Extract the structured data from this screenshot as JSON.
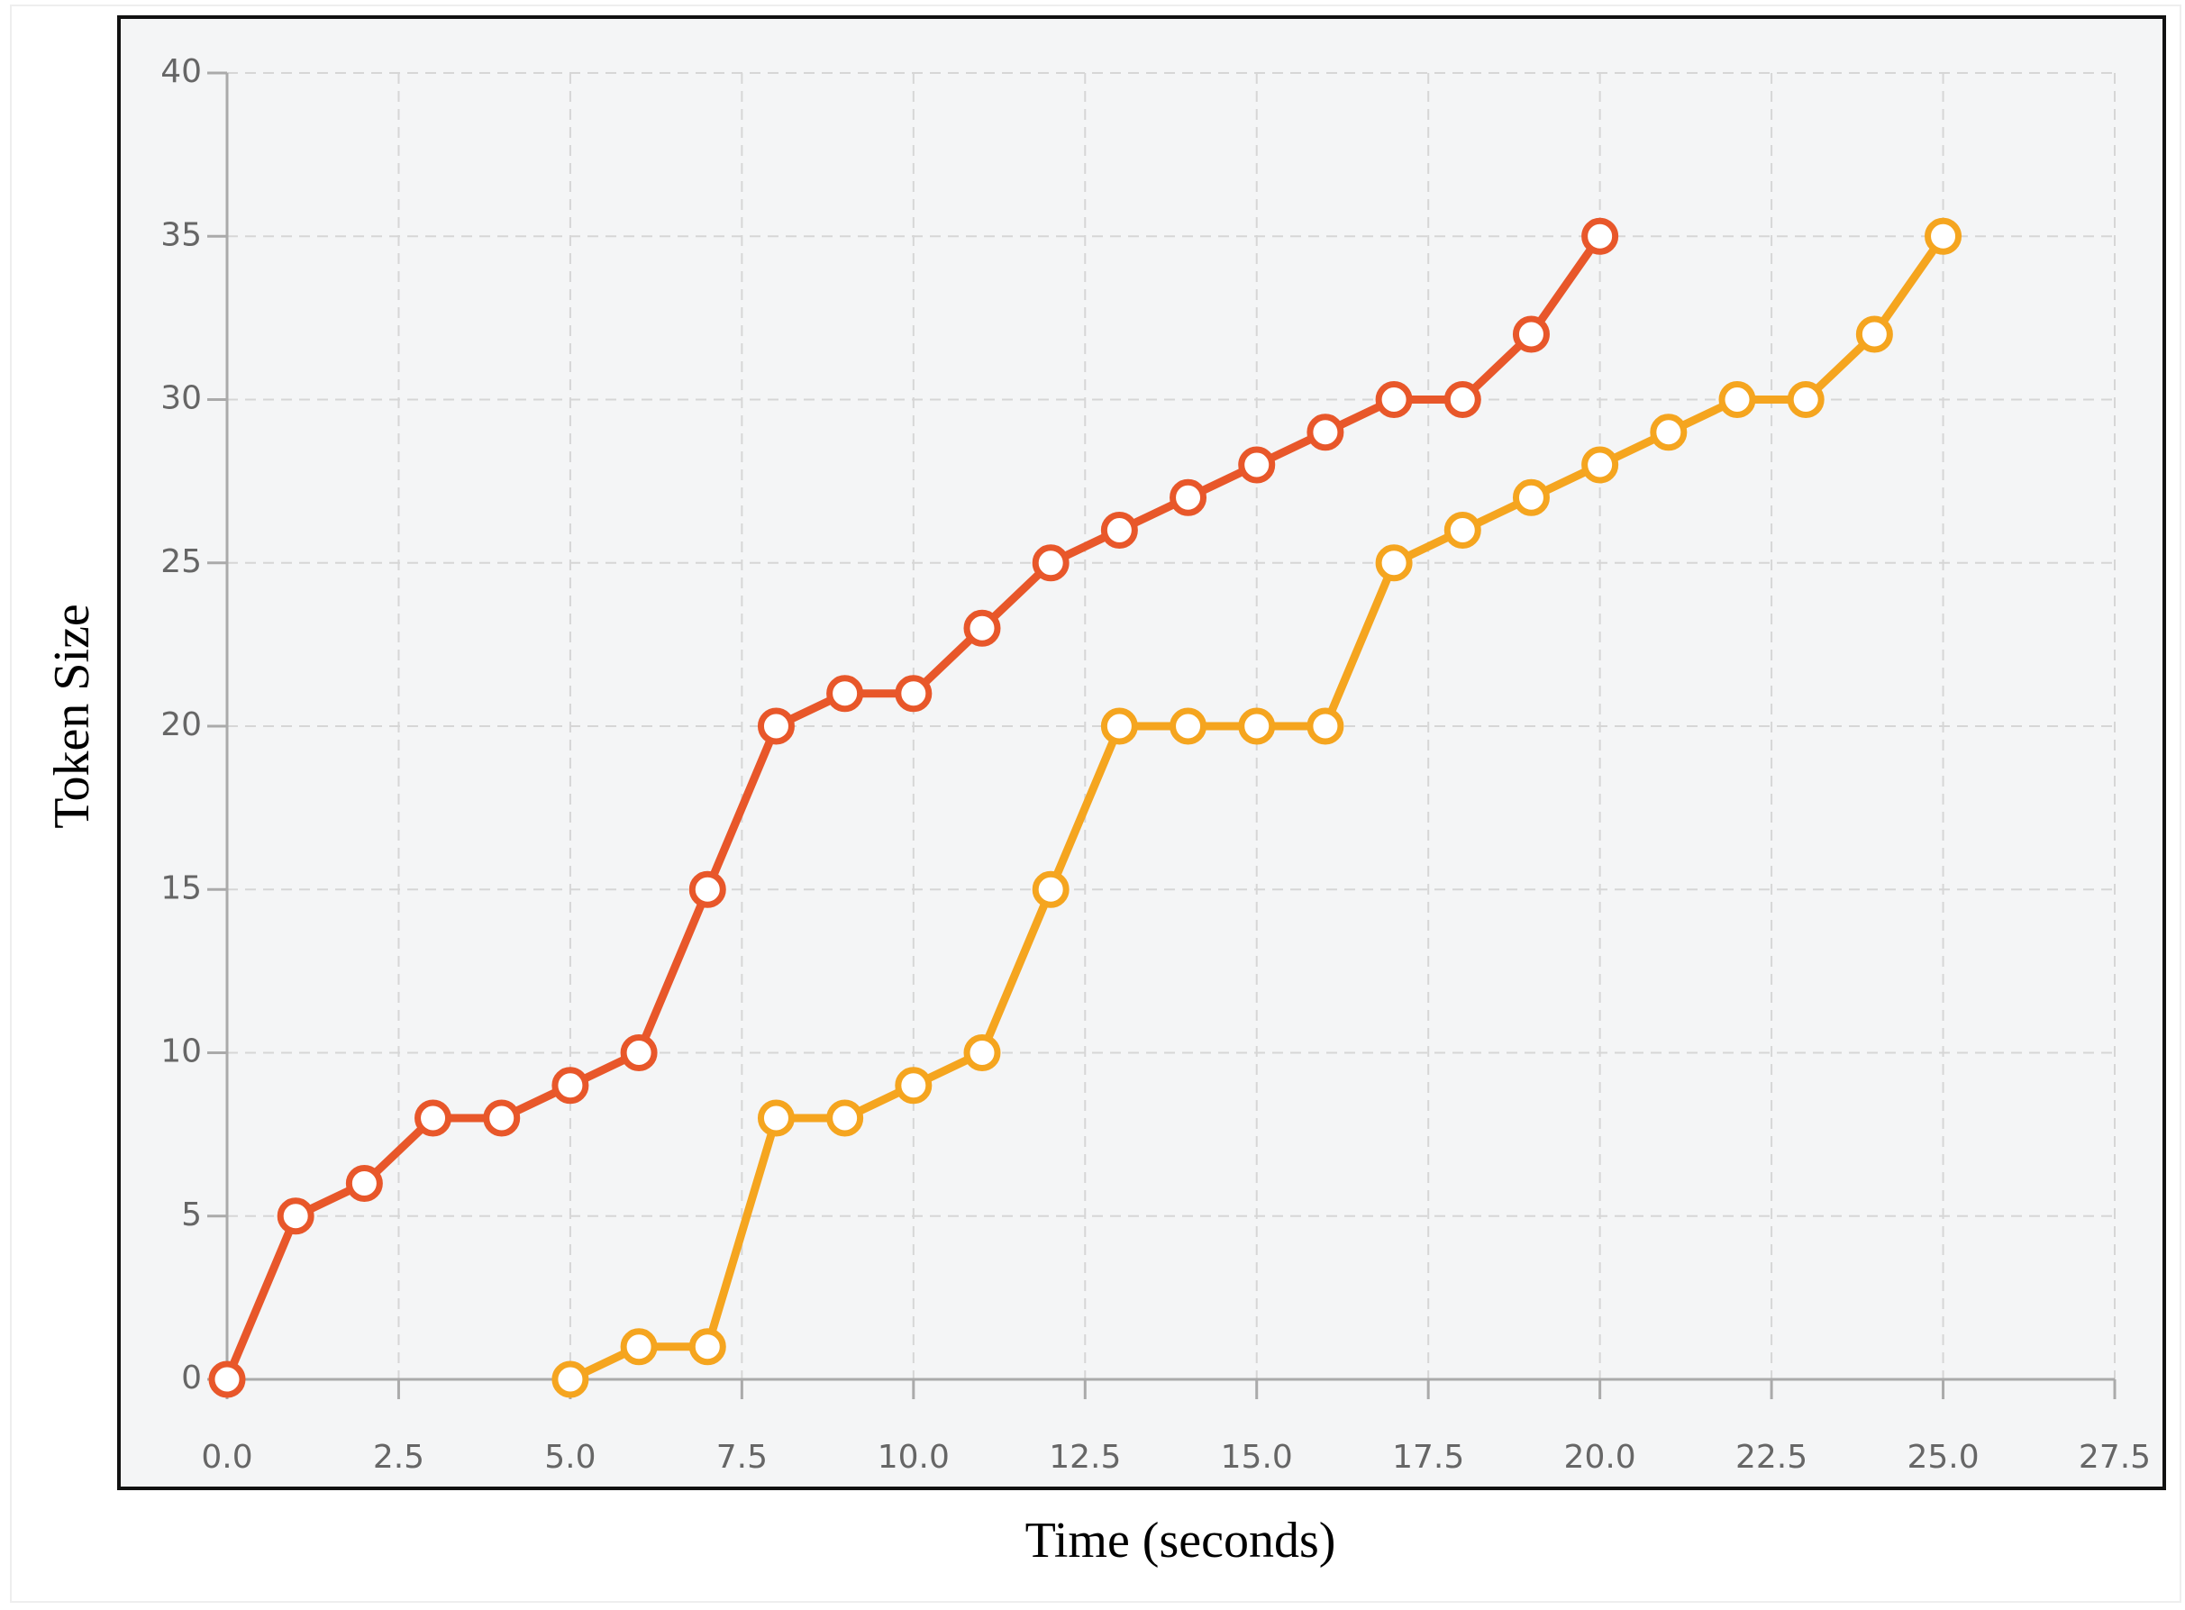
{
  "chart_data": {
    "type": "line",
    "x_label": "Time (seconds)",
    "y_label": "Token Size",
    "xlim": [
      0,
      27.5
    ],
    "ylim": [
      0,
      40
    ],
    "xticks": [
      {
        "value": 0,
        "label": "0.0"
      },
      {
        "value": 2.5,
        "label": "2.5"
      },
      {
        "value": 5,
        "label": "5.0"
      },
      {
        "value": 7.5,
        "label": "7.5"
      },
      {
        "value": 10,
        "label": "10.0"
      },
      {
        "value": 12.5,
        "label": "12.5"
      },
      {
        "value": 15,
        "label": "15.0"
      },
      {
        "value": 17.5,
        "label": "17.5"
      },
      {
        "value": 20,
        "label": "20.0"
      },
      {
        "value": 22.5,
        "label": "22.5"
      },
      {
        "value": 25,
        "label": "25.0"
      },
      {
        "value": 27.5,
        "label": "27.5"
      }
    ],
    "yticks": [
      0,
      5,
      10,
      15,
      20,
      25,
      30,
      35,
      40
    ],
    "grid": true,
    "series": [
      {
        "color": "#e8572a",
        "x": [
          0,
          1,
          2,
          3,
          4,
          5,
          6,
          7,
          8,
          9,
          10,
          11,
          12,
          13,
          14,
          15,
          16,
          17,
          18,
          19,
          20
        ],
        "values": [
          0,
          5,
          6,
          8,
          8,
          9,
          10,
          15,
          20,
          21,
          21,
          23,
          25,
          26,
          27,
          28,
          29,
          30,
          30,
          32,
          35
        ]
      },
      {
        "color": "#f5a51f",
        "x": [
          5,
          6,
          7,
          8,
          9,
          10,
          11,
          12,
          13,
          14,
          15,
          16,
          17,
          18,
          19,
          20,
          21,
          22,
          23,
          24,
          25
        ],
        "values": [
          0,
          1,
          1,
          8,
          8,
          9,
          10,
          15,
          20,
          20,
          20,
          20,
          25,
          26,
          27,
          28,
          29,
          30,
          30,
          32,
          35
        ]
      }
    ]
  }
}
